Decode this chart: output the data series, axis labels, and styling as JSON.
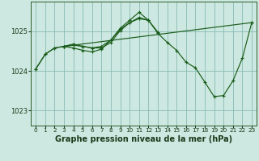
{
  "background_color": "#cce8e0",
  "plot_bg_color": "#cce8e0",
  "line_color": "#1a5c1a",
  "grid_color": "#88bbb4",
  "title": "Graphe pression niveau de la mer (hPa)",
  "ylim": [
    1022.62,
    1025.75
  ],
  "yticks": [
    1023,
    1024,
    1025
  ],
  "xticks": [
    0,
    1,
    2,
    3,
    4,
    5,
    6,
    7,
    8,
    9,
    10,
    11,
    12,
    13,
    14,
    15,
    16,
    17,
    18,
    19,
    20,
    21,
    22,
    23
  ],
  "series": [
    {
      "x": [
        0,
        1,
        2,
        3,
        4,
        5,
        6,
        7,
        8,
        9,
        10,
        11,
        12,
        13,
        14,
        15,
        16,
        17,
        18,
        19,
        20,
        21,
        22,
        23
      ],
      "y": [
        1024.05,
        1024.42,
        1024.58,
        1024.62,
        1024.58,
        1024.52,
        1024.48,
        1024.55,
        1024.78,
        1025.08,
        1025.28,
        1025.48,
        1025.28,
        1024.95,
        1024.72,
        1024.52,
        1024.22,
        1024.08,
        1023.72,
        1023.35,
        1023.38,
        1023.75,
        1024.32,
        1025.22
      ]
    },
    {
      "x": [
        0,
        1,
        2,
        3,
        4,
        5,
        6,
        7,
        8,
        9,
        10,
        11,
        12
      ],
      "y": [
        1024.05,
        1024.42,
        1024.58,
        1024.62,
        1024.65,
        1024.62,
        1024.58,
        1024.62,
        1024.78,
        1025.05,
        1025.22,
        1025.32,
        1025.28
      ]
    },
    {
      "x": [
        3,
        4,
        5,
        6,
        7,
        8,
        9,
        10,
        11,
        12,
        13
      ],
      "y": [
        1024.62,
        1024.68,
        1024.62,
        1024.58,
        1024.58,
        1024.72,
        1025.02,
        1025.22,
        1025.35,
        1025.28,
        1024.98
      ]
    },
    {
      "x": [
        3,
        23
      ],
      "y": [
        1024.62,
        1025.22
      ]
    }
  ]
}
